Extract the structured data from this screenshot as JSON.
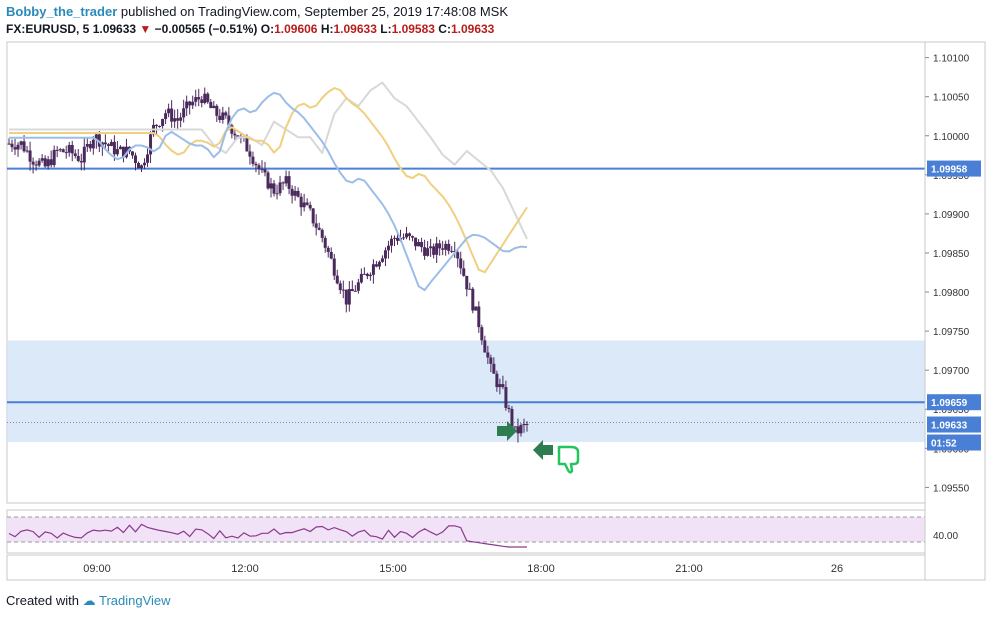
{
  "header": {
    "author": "Bobby_the_trader",
    "published_text": "published on TradingView.com, September 25, 2019 17:48:08 MSK",
    "symbol": "FX:EURUSD, 5",
    "last": "1.09633",
    "change": "−0.00565 (−0.51%)",
    "o_label": "O:",
    "o_value": "1.09606",
    "h_label": "H:",
    "h_value": "1.09633",
    "l_label": "L:",
    "l_value": "1.09583",
    "c_label": "C:",
    "c_value": "1.09633"
  },
  "footer": {
    "created_with": "Created with",
    "brand": "TradingView"
  },
  "colors": {
    "candle_body": "#4a2a5c",
    "zone": "#cfe1f7",
    "level_line": "#4a7fd6",
    "ma_fast": "#9cbde8",
    "ma_mid": "#f0d080",
    "ma_slow": "#d8d8d8",
    "rsi_line": "#8b3a8b",
    "rsi_band": "#f1e2f7",
    "arrow": "#2e7d4f",
    "thumb": "#22c55e"
  },
  "chart_data": {
    "type": "candlestick",
    "y_ticks": [
      "1.10100",
      "1.10050",
      "1.10000",
      "1.09950",
      "1.09900",
      "1.09850",
      "1.09800",
      "1.09750",
      "1.09700",
      "1.09650",
      "1.09600",
      "1.09550"
    ],
    "x_ticks": [
      "09:00",
      "12:00",
      "15:00",
      "18:00",
      "21:00",
      "26"
    ],
    "ylim": [
      1.0953,
      1.1012
    ],
    "price_labels": [
      {
        "value": 1.09958,
        "text": "1.09958"
      },
      {
        "value": 1.09659,
        "text": "1.09659"
      },
      {
        "value": 1.09633,
        "text": "1.09633"
      },
      {
        "text": "01:52"
      }
    ],
    "levels": [
      1.09958,
      1.09659
    ],
    "zone": [
      1.09608,
      1.09738
    ],
    "current_price": 1.09633,
    "close_path": [
      [
        0,
        1.0999
      ],
      [
        4,
        1.0999
      ],
      [
        8,
        1.0997
      ],
      [
        12,
        1.0996
      ],
      [
        16,
        1.0998
      ],
      [
        20,
        1.0998
      ],
      [
        24,
        1.0997
      ],
      [
        28,
        1.1
      ],
      [
        32,
        1.0999
      ],
      [
        36,
        1.0998
      ],
      [
        40,
        1.0998
      ],
      [
        44,
        1.0996
      ],
      [
        48,
        1.1001
      ],
      [
        52,
        1.1003
      ],
      [
        56,
        1.1002
      ],
      [
        60,
        1.1004
      ],
      [
        64,
        1.1005
      ],
      [
        68,
        1.1003
      ],
      [
        72,
        1.1002
      ],
      [
        76,
        1.1
      ],
      [
        80,
        1.0998
      ],
      [
        84,
        1.0995
      ],
      [
        88,
        1.0993
      ],
      [
        92,
        1.0994
      ],
      [
        96,
        1.0992
      ],
      [
        100,
        1.099
      ],
      [
        104,
        1.0987
      ],
      [
        108,
        1.0983
      ],
      [
        112,
        1.0979
      ],
      [
        116,
        1.0981
      ],
      [
        120,
        1.0983
      ],
      [
        124,
        1.0985
      ],
      [
        128,
        1.0987
      ],
      [
        132,
        1.0987
      ],
      [
        136,
        1.0986
      ],
      [
        140,
        1.0985
      ],
      [
        144,
        1.0986
      ],
      [
        148,
        1.0986
      ],
      [
        152,
        1.0981
      ],
      [
        156,
        1.0976
      ],
      [
        160,
        1.097
      ],
      [
        164,
        1.0967
      ],
      [
        168,
        1.0962
      ],
      [
        172,
        1.0963
      ]
    ],
    "rsi_ticks": [
      "40.00"
    ],
    "rsi_band": [
      30,
      70
    ]
  }
}
